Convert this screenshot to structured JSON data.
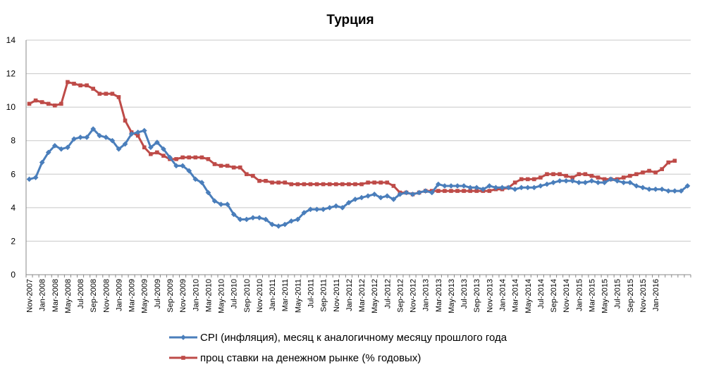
{
  "chart_data": {
    "type": "line",
    "title": "Турция",
    "xlabel": "",
    "ylabel": "",
    "ylim": [
      0,
      14
    ],
    "y_ticks": [
      "0",
      "2",
      "4",
      "6",
      "8",
      "10",
      "12",
      "14"
    ],
    "grid": "horizontal",
    "legend_position": "bottom",
    "x_tick_labels": [
      "Nov-2007",
      "Jan-2008",
      "Mar-2008",
      "May-2008",
      "Jul-2008",
      "Sep-2008",
      "Nov-2008",
      "Jan-2009",
      "Mar-2009",
      "May-2009",
      "Jul-2009",
      "Sep-2009",
      "Nov-2009",
      "Jan-2010",
      "Mar-2010",
      "May-2010",
      "Jul-2010",
      "Sep-2010",
      "Nov-2010",
      "Jan-2011",
      "Mar-2011",
      "May-2011",
      "Jul-2011",
      "Sep-2011",
      "Nov-2011",
      "Jan-2012",
      "Mar-2012",
      "May-2012",
      "Jul-2012",
      "Sep-2012",
      "Nov-2012",
      "Jan-2013",
      "Mar-2013",
      "May-2013",
      "Jul-2013",
      "Sep-2013",
      "Nov-2013",
      "Jan-2014",
      "Mar-2014",
      "May-2014",
      "Jul-2014",
      "Sep-2014",
      "Nov-2014",
      "Jan-2015",
      "Mar-2015",
      "May-2015",
      "Jul-2015",
      "Sep-2015",
      "Nov-2015",
      "Jan-2016"
    ],
    "series": [
      {
        "name": "CPI (инфляция), месяц к аналогичному месяцу прошлого года",
        "color": "#4a7ebb",
        "marker": "diamond",
        "values": [
          5.7,
          5.8,
          6.7,
          7.3,
          7.7,
          7.5,
          7.6,
          8.1,
          8.2,
          8.2,
          8.7,
          8.3,
          8.2,
          8.0,
          7.5,
          7.8,
          8.4,
          8.5,
          8.6,
          7.6,
          7.9,
          7.5,
          7.0,
          6.5,
          6.5,
          6.2,
          5.7,
          5.5,
          4.9,
          4.4,
          4.2,
          4.2,
          3.6,
          3.3,
          3.3,
          3.4,
          3.4,
          3.3,
          3.0,
          2.9,
          3.0,
          3.2,
          3.3,
          3.7,
          3.9,
          3.9,
          3.9,
          4.0,
          4.1,
          4.0,
          4.3,
          4.5,
          4.6,
          4.7,
          4.8,
          4.6,
          4.7,
          4.5,
          4.8,
          4.9,
          4.8,
          4.9,
          5.0,
          4.9,
          5.4,
          5.3,
          5.3,
          5.3,
          5.3,
          5.2,
          5.2,
          5.1,
          5.3,
          5.2,
          5.2,
          5.2,
          5.1,
          5.2,
          5.2,
          5.2,
          5.3,
          5.4,
          5.5,
          5.6,
          5.6,
          5.6,
          5.5,
          5.5,
          5.6,
          5.5,
          5.5,
          5.7,
          5.6,
          5.5,
          5.5,
          5.3,
          5.2,
          5.1,
          5.1,
          5.1,
          5.0,
          5.0,
          5.0,
          5.3
        ]
      },
      {
        "name": "проц ставки на денежном рынке (% годовых)",
        "color": "#be4b48",
        "marker": "square",
        "values": [
          10.2,
          10.4,
          10.3,
          10.2,
          10.1,
          10.2,
          11.5,
          11.4,
          11.3,
          11.3,
          11.1,
          10.8,
          10.8,
          10.8,
          10.6,
          9.2,
          8.5,
          8.3,
          7.6,
          7.2,
          7.3,
          7.1,
          6.9,
          6.9,
          7.0,
          7.0,
          7.0,
          7.0,
          6.9,
          6.6,
          6.5,
          6.5,
          6.4,
          6.4,
          6.0,
          5.9,
          5.6,
          5.6,
          5.5,
          5.5,
          5.5,
          5.4,
          5.4,
          5.4,
          5.4,
          5.4,
          5.4,
          5.4,
          5.4,
          5.4,
          5.4,
          5.4,
          5.4,
          5.5,
          5.5,
          5.5,
          5.5,
          5.3,
          4.9,
          4.9,
          4.8,
          4.9,
          5.0,
          5.0,
          5.0,
          5.0,
          5.0,
          5.0,
          5.0,
          5.0,
          5.0,
          5.0,
          5.0,
          5.1,
          5.1,
          5.2,
          5.5,
          5.7,
          5.7,
          5.7,
          5.8,
          6.0,
          6.0,
          6.0,
          5.9,
          5.8,
          6.0,
          6.0,
          5.9,
          5.8,
          5.7,
          5.7,
          5.7,
          5.8,
          5.9,
          6.0,
          6.1,
          6.2,
          6.1,
          6.3,
          6.7,
          6.8
        ]
      }
    ]
  }
}
